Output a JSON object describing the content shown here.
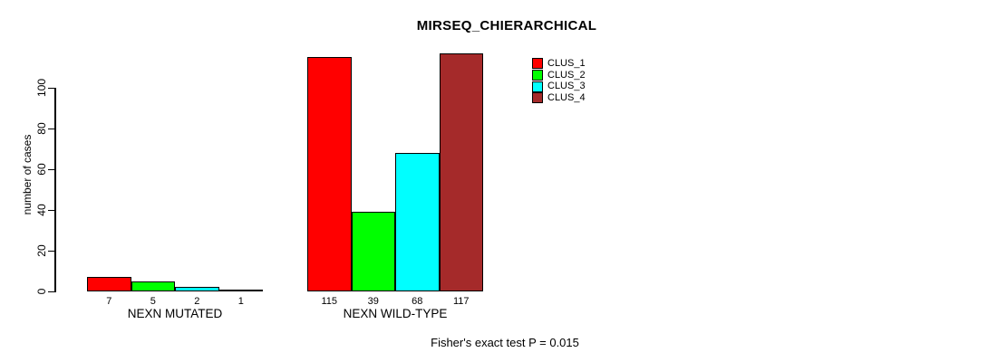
{
  "chart_data": {
    "type": "bar",
    "title": "MIRSEQ_CHIERARCHICAL",
    "ylabel": "number of cases",
    "xlabel": "",
    "categories": [
      "NEXN MUTATED",
      "NEXN WILD-TYPE"
    ],
    "series": [
      {
        "name": "CLUS_1",
        "color": "#FF0000",
        "values": [
          7,
          115
        ]
      },
      {
        "name": "CLUS_2",
        "color": "#00FF00",
        "values": [
          5,
          39
        ]
      },
      {
        "name": "CLUS_3",
        "color": "#00FFFF",
        "values": [
          2,
          68
        ]
      },
      {
        "name": "CLUS_4",
        "color": "#A52A2A",
        "values": [
          1,
          117
        ]
      }
    ],
    "yticks": [
      0,
      20,
      40,
      60,
      80,
      100
    ],
    "ylim": [
      0,
      117
    ],
    "grid": false,
    "bar_value_labels_shown": true,
    "legend": {
      "position": "top-right",
      "entries": [
        "CLUS_1",
        "CLUS_2",
        "CLUS_3",
        "CLUS_4"
      ]
    },
    "annotation": "Fisher's exact test P = 0.015"
  }
}
